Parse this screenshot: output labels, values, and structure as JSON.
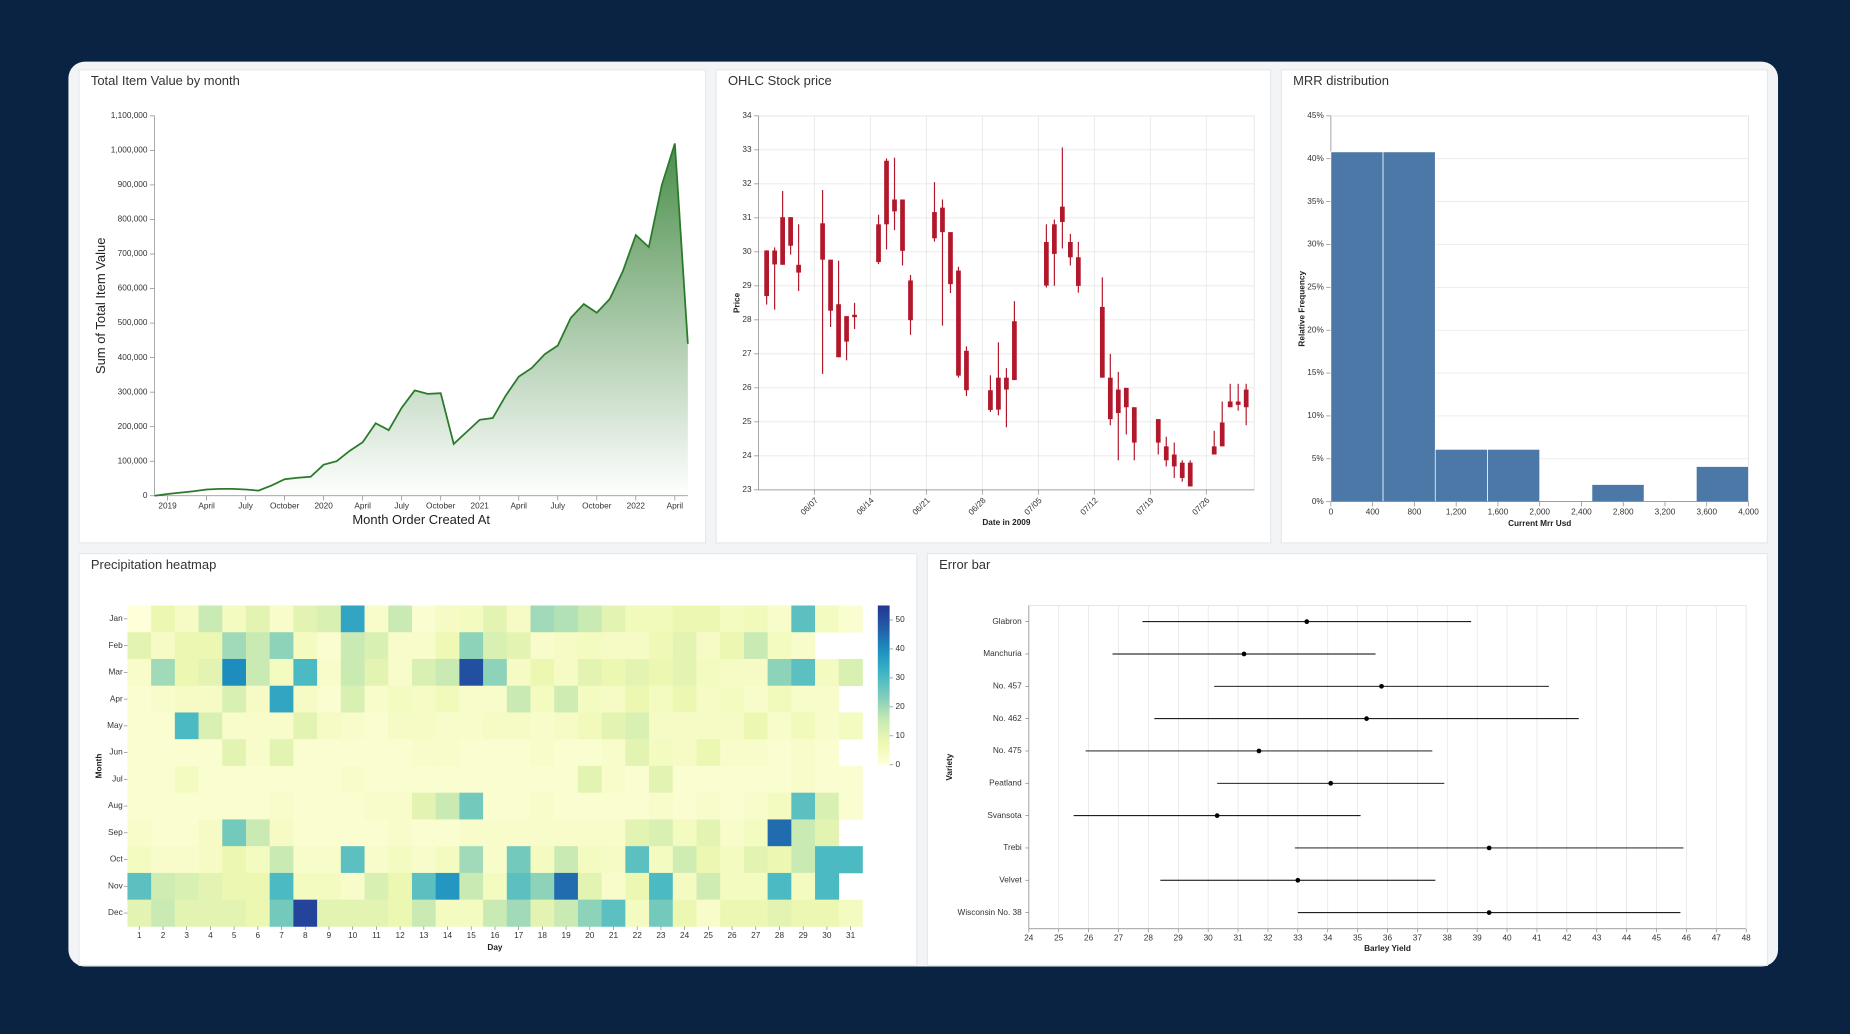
{
  "chart_data": [
    {
      "type": "area",
      "title": "Total Item Value by month",
      "x_label": "Month Order Created At",
      "y_label": "Sum of Total Item Value",
      "x": [
        "2018-12",
        "2019-01",
        "2019-02",
        "2019-03",
        "2019-04",
        "2019-05",
        "2019-06",
        "2019-07",
        "2019-08",
        "2019-09",
        "2019-10",
        "2019-11",
        "2019-12",
        "2020-01",
        "2020-02",
        "2020-03",
        "2020-04",
        "2020-05",
        "2020-06",
        "2020-07",
        "2020-08",
        "2020-09",
        "2020-10",
        "2020-11",
        "2020-12",
        "2021-01",
        "2021-02",
        "2021-03",
        "2021-04",
        "2021-05",
        "2021-06",
        "2021-07",
        "2021-08",
        "2021-09",
        "2021-10",
        "2021-11",
        "2021-12",
        "2022-01",
        "2022-02",
        "2022-03",
        "2022-04",
        "2022-05"
      ],
      "values": [
        0,
        5000,
        9000,
        13000,
        18000,
        20000,
        20000,
        18000,
        15000,
        30000,
        48000,
        52000,
        55000,
        90000,
        100000,
        130000,
        155000,
        210000,
        190000,
        255000,
        305000,
        295000,
        297000,
        150000,
        185000,
        220000,
        225000,
        290000,
        345000,
        370000,
        410000,
        435000,
        515000,
        555000,
        530000,
        570000,
        650000,
        755000,
        720000,
        900000,
        1020000,
        440000
      ],
      "color": "#2b7a2b",
      "xlim": [
        "2018-12",
        "2022-05"
      ],
      "ylim": [
        0,
        1100000
      ],
      "yticks": [
        0,
        {
          "value": 100000,
          "label": "100,000"
        },
        {
          "value": 200000,
          "label": "200,000"
        },
        {
          "value": 300000,
          "label": "300,000"
        },
        {
          "value": 400000,
          "label": "400,000"
        },
        {
          "value": 500000,
          "label": "500,000"
        },
        {
          "value": 600000,
          "label": "600,000"
        },
        {
          "value": 700000,
          "label": "700,000"
        },
        {
          "value": 800000,
          "label": "800,000"
        },
        {
          "value": 900000,
          "label": "900,000"
        },
        {
          "value": 1000000,
          "label": "1,000,000"
        },
        {
          "value": 1100000,
          "label": "1,100,000"
        }
      ],
      "xticks": [
        {
          "value": "2019-01",
          "label": "2019"
        },
        {
          "value": "2019-04",
          "label": "April"
        },
        {
          "value": "2019-07",
          "label": "July"
        },
        {
          "value": "2019-10",
          "label": "October"
        },
        {
          "value": "2020-01",
          "label": "2020"
        },
        {
          "value": "2020-04",
          "label": "April"
        },
        {
          "value": "2020-07",
          "label": "July"
        },
        {
          "value": "2020-10",
          "label": "October"
        },
        {
          "value": "2021-01",
          "label": "2021"
        },
        {
          "value": "2021-04",
          "label": "April"
        },
        {
          "value": "2021-07",
          "label": "July"
        },
        {
          "value": "2021-10",
          "label": "October"
        },
        {
          "value": "2022-01",
          "label": "2022"
        },
        {
          "value": "2022-04",
          "label": "April"
        }
      ]
    },
    {
      "type": "candlestick",
      "title": "OHLC Stock price",
      "x_label": "Date in 2009",
      "y_label": "Price",
      "x": [
        "2009-06-01",
        "2009-06-02",
        "2009-06-03",
        "2009-06-04",
        "2009-06-05",
        "2009-06-08",
        "2009-06-09",
        "2009-06-10",
        "2009-06-11",
        "2009-06-12",
        "2009-06-15",
        "2009-06-16",
        "2009-06-17",
        "2009-06-18",
        "2009-06-19",
        "2009-06-22",
        "2009-06-23",
        "2009-06-24",
        "2009-06-25",
        "2009-06-26",
        "2009-06-29",
        "2009-06-30",
        "2009-07-01",
        "2009-07-02",
        "2009-07-06",
        "2009-07-07",
        "2009-07-08",
        "2009-07-09",
        "2009-07-10",
        "2009-07-13",
        "2009-07-14",
        "2009-07-15",
        "2009-07-16",
        "2009-07-17",
        "2009-07-20",
        "2009-07-21",
        "2009-07-22",
        "2009-07-23",
        "2009-07-24",
        "2009-07-27",
        "2009-07-28",
        "2009-07-29",
        "2009-07-30",
        "2009-07-31"
      ],
      "open": [
        28.7,
        30.04,
        29.62,
        31.02,
        29.39,
        30.84,
        29.77,
        26.9,
        27.36,
        28.08,
        29.7,
        30.81,
        31.19,
        31.54,
        29.16,
        30.4,
        31.3,
        30.58,
        29.45,
        27.09,
        25.93,
        25.36,
        26.3,
        26.23,
        30.29,
        30.81,
        31.33,
        30.29,
        29.84,
        28.38,
        26.3,
        25.95,
        26.0,
        25.43,
        25.08,
        24.28,
        24.04,
        23.8,
        23.8,
        24.28,
        24.98,
        25.6,
        25.6,
        25.95
      ],
      "high": [
        30.05,
        30.13,
        31.79,
        31.02,
        30.81,
        31.82,
        29.77,
        29.74,
        28.11,
        28.5,
        31.09,
        32.75,
        32.77,
        31.54,
        29.32,
        32.05,
        31.54,
        30.58,
        29.56,
        27.22,
        26.37,
        27.34,
        26.58,
        28.55,
        30.81,
        30.95,
        33.07,
        30.53,
        30.29,
        29.25,
        27.0,
        26.47,
        26.0,
        25.43,
        25.08,
        24.56,
        24.39,
        23.87,
        23.87,
        24.74,
        25.6,
        26.12,
        26.12,
        26.12
      ],
      "low": [
        28.45,
        28.3,
        29.62,
        29.92,
        28.85,
        26.41,
        27.79,
        26.9,
        26.81,
        27.73,
        29.64,
        30.07,
        30.64,
        29.6,
        27.56,
        30.3,
        27.83,
        28.79,
        26.3,
        25.76,
        25.29,
        25.19,
        24.84,
        26.23,
        28.95,
        29.0,
        30.1,
        29.6,
        28.8,
        26.3,
        24.9,
        23.87,
        24.63,
        23.87,
        24.04,
        23.69,
        23.35,
        23.24,
        23.1,
        24.04,
        24.28,
        25.43,
        25.33,
        24.9
      ],
      "close": [
        30.04,
        29.63,
        31.02,
        30.18,
        29.62,
        29.77,
        28.27,
        28.46,
        28.11,
        28.15,
        30.81,
        32.68,
        31.54,
        30.03,
        27.99,
        31.17,
        30.58,
        29.05,
        26.36,
        25.93,
        25.35,
        26.3,
        25.95,
        27.96,
        29.01,
        29.94,
        30.88,
        29.84,
        29.0,
        26.3,
        25.08,
        25.26,
        25.43,
        24.39,
        24.39,
        23.87,
        23.69,
        23.35,
        23.1,
        24.04,
        24.28,
        25.43,
        25.5,
        25.43
      ],
      "color": "#b2182b",
      "grid": true,
      "xlim": [
        "2009-05-31",
        "2009-08-01"
      ],
      "ylim": [
        23,
        34
      ],
      "yticks": [
        23,
        24,
        25,
        26,
        27,
        28,
        29,
        30,
        31,
        32,
        33,
        34
      ],
      "xticks": [
        {
          "value": "2009-06-07",
          "label": "06/07"
        },
        {
          "value": "2009-06-14",
          "label": "06/14"
        },
        {
          "value": "2009-06-21",
          "label": "06/21"
        },
        {
          "value": "2009-06-28",
          "label": "06/28"
        },
        {
          "value": "2009-07-05",
          "label": "07/05"
        },
        {
          "value": "2009-07-12",
          "label": "07/12"
        },
        {
          "value": "2009-07-19",
          "label": "07/19"
        },
        {
          "value": "2009-07-26",
          "label": "07/26"
        }
      ]
    },
    {
      "type": "histogram",
      "title": "MRR distribution",
      "x_label": "Current Mrr Usd",
      "y_label": "Relative Frequency",
      "bins": [
        0,
        500,
        1000,
        1500,
        2000,
        2500,
        3000,
        3500,
        4000
      ],
      "values": [
        40.8,
        40.8,
        6.1,
        6.1,
        0,
        2.0,
        0,
        4.1
      ],
      "color": "#4c78a8",
      "grid": true,
      "xlim": [
        0,
        4000
      ],
      "ylim": [
        0,
        45
      ],
      "xticks": [
        0,
        400,
        800,
        {
          "value": 1200,
          "label": "1,200"
        },
        {
          "value": 1600,
          "label": "1,600"
        },
        {
          "value": 2000,
          "label": "2,000"
        },
        {
          "value": 2400,
          "label": "2,400"
        },
        {
          "value": 2800,
          "label": "2,800"
        },
        {
          "value": 3200,
          "label": "3,200"
        },
        {
          "value": 3600,
          "label": "3,600"
        },
        {
          "value": 4000,
          "label": "4,000"
        }
      ],
      "yticks": [
        {
          "value": 0,
          "label": "0%"
        },
        {
          "value": 5,
          "label": "5%"
        },
        {
          "value": 10,
          "label": "10%"
        },
        {
          "value": 15,
          "label": "15%"
        },
        {
          "value": 20,
          "label": "20%"
        },
        {
          "value": 25,
          "label": "25%"
        },
        {
          "value": 30,
          "label": "30%"
        },
        {
          "value": 35,
          "label": "35%"
        },
        {
          "value": 40,
          "label": "40%"
        },
        {
          "value": 45,
          "label": "45%"
        }
      ]
    },
    {
      "type": "heatmap",
      "title": "Precipitation heatmap",
      "x_label": "Day",
      "y_label": "Month",
      "x": [
        1,
        2,
        3,
        4,
        5,
        6,
        7,
        8,
        9,
        10,
        11,
        12,
        13,
        14,
        15,
        16,
        17,
        18,
        19,
        20,
        21,
        22,
        23,
        24,
        25,
        26,
        27,
        28,
        29,
        30,
        31
      ],
      "y": [
        "Jan",
        "Feb",
        "Mar",
        "Apr",
        "May",
        "Jun",
        "Jul",
        "Aug",
        "Sep",
        "Oct",
        "Nov",
        "Dec"
      ],
      "values": [
        [
          0,
          8,
          4,
          15,
          5,
          10,
          3,
          10,
          12,
          35,
          3,
          15,
          2,
          4,
          5,
          10,
          4,
          20,
          18,
          15,
          10,
          6,
          6,
          8,
          8,
          5,
          6,
          3,
          28,
          5,
          2
        ],
        [
          10,
          4,
          8,
          8,
          20,
          15,
          22,
          5,
          2,
          15,
          12,
          3,
          3,
          7,
          22,
          12,
          10,
          3,
          4,
          5,
          4,
          4,
          7,
          10,
          4,
          8,
          15,
          5,
          3,
          null,
          null
        ],
        [
          3,
          20,
          8,
          10,
          40,
          15,
          5,
          30,
          3,
          15,
          10,
          3,
          12,
          15,
          50,
          22,
          4,
          8,
          4,
          10,
          8,
          10,
          8,
          10,
          5,
          4,
          4,
          22,
          28,
          5,
          12
        ],
        [
          2,
          3,
          4,
          4,
          12,
          4,
          35,
          4,
          2,
          12,
          3,
          5,
          4,
          6,
          3,
          3,
          15,
          5,
          14,
          5,
          4,
          8,
          5,
          8,
          4,
          5,
          3,
          6,
          3,
          3,
          null
        ],
        [
          2,
          2,
          30,
          12,
          3,
          3,
          3,
          10,
          4,
          3,
          2,
          4,
          4,
          3,
          3,
          4,
          4,
          3,
          4,
          6,
          10,
          12,
          4,
          4,
          4,
          4,
          8,
          3,
          6,
          3,
          5
        ],
        [
          2,
          2,
          2,
          2,
          10,
          3,
          10,
          2,
          2,
          2,
          2,
          2,
          3,
          3,
          2,
          2,
          2,
          3,
          2,
          2,
          3,
          10,
          5,
          4,
          8,
          3,
          3,
          2,
          3,
          2,
          null
        ],
        [
          2,
          2,
          5,
          2,
          2,
          2,
          2,
          2,
          2,
          3,
          2,
          2,
          2,
          2,
          2,
          2,
          2,
          2,
          2,
          10,
          3,
          2,
          10,
          2,
          2,
          2,
          2,
          2,
          3,
          2,
          2
        ],
        [
          2,
          2,
          2,
          2,
          2,
          2,
          3,
          2,
          2,
          2,
          3,
          3,
          10,
          15,
          25,
          2,
          2,
          3,
          2,
          2,
          2,
          2,
          3,
          2,
          3,
          2,
          3,
          5,
          28,
          12,
          2
        ],
        [
          3,
          2,
          2,
          4,
          25,
          15,
          4,
          2,
          2,
          2,
          2,
          3,
          2,
          2,
          3,
          3,
          3,
          3,
          3,
          3,
          3,
          10,
          12,
          5,
          10,
          3,
          5,
          45,
          15,
          10,
          null
        ],
        [
          5,
          3,
          3,
          4,
          8,
          5,
          15,
          3,
          3,
          28,
          3,
          5,
          3,
          5,
          20,
          3,
          25,
          5,
          15,
          5,
          4,
          28,
          5,
          14,
          8,
          5,
          10,
          8,
          15,
          30,
          30
        ],
        [
          28,
          14,
          12,
          10,
          8,
          8,
          30,
          5,
          5,
          3,
          12,
          8,
          28,
          38,
          15,
          5,
          28,
          22,
          45,
          10,
          3,
          8,
          30,
          5,
          14,
          5,
          5,
          30,
          5,
          30,
          null
        ],
        [
          10,
          15,
          10,
          10,
          10,
          8,
          25,
          52,
          10,
          10,
          10,
          8,
          15,
          5,
          5,
          15,
          20,
          10,
          15,
          22,
          28,
          5,
          25,
          8,
          3,
          8,
          8,
          10,
          8,
          8,
          5
        ]
      ],
      "colors": [
        "#ffffd9",
        "#edf8b1",
        "#c7e9b4",
        "#7fcdbb",
        "#41b6c4",
        "#1d91c0",
        "#225ea8",
        "#253494"
      ],
      "colorlim": [
        0,
        55
      ],
      "colorticks": [
        0,
        10,
        20,
        30,
        40,
        50
      ]
    },
    {
      "type": "errorbar",
      "title": "Error bar",
      "x_label": "Barley Yield",
      "y_label": "Variety",
      "categories": [
        "Glabron",
        "Manchuria",
        "No. 457",
        "No. 462",
        "No. 475",
        "Peatland",
        "Svansota",
        "Trebi",
        "Velvet",
        "Wisconsin No. 38"
      ],
      "values": [
        33.3,
        31.2,
        35.8,
        35.3,
        31.7,
        34.1,
        30.3,
        39.4,
        33.0,
        39.4
      ],
      "errors": [
        5.5,
        4.4,
        5.6,
        7.1,
        5.8,
        3.8,
        4.8,
        6.5,
        4.6,
        6.4
      ],
      "color": "#000000",
      "grid": true,
      "xlim": [
        24,
        48
      ],
      "xticks": [
        24,
        25,
        26,
        27,
        28,
        29,
        30,
        31,
        32,
        33,
        34,
        35,
        36,
        37,
        38,
        39,
        40,
        41,
        42,
        43,
        44,
        45,
        46,
        47,
        48
      ]
    }
  ]
}
